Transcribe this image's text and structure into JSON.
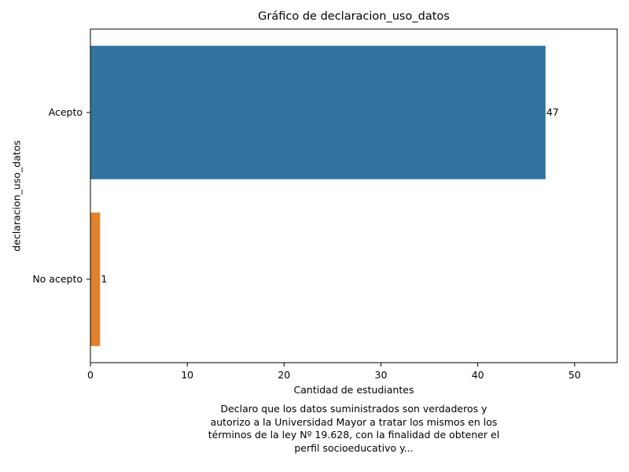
{
  "chart_data": {
    "type": "bar",
    "orientation": "horizontal",
    "title": "Gráfico de declaracion_uso_datos",
    "xlabel": "Cantidad de estudiantes",
    "ylabel": "declaracion_uso_datos",
    "categories": [
      "Acepto",
      "No acepto"
    ],
    "values": [
      47,
      1
    ],
    "data_labels": [
      "47",
      "1"
    ],
    "colors": [
      "#3274a1",
      "#e1812c"
    ],
    "xlim": [
      0,
      54.4
    ],
    "xticks": [
      0,
      10,
      20,
      30,
      40,
      50
    ],
    "grid": false,
    "legend": "none"
  },
  "caption": {
    "lines": [
      "Declaro que los datos suministrados son verdaderos y",
      "autorizo a la Universidad Mayor a tratar los mismos en los",
      "términos de la ley Nº 19.628, con la finalidad de obtener el",
      "perfil socioeducativo y..."
    ]
  }
}
